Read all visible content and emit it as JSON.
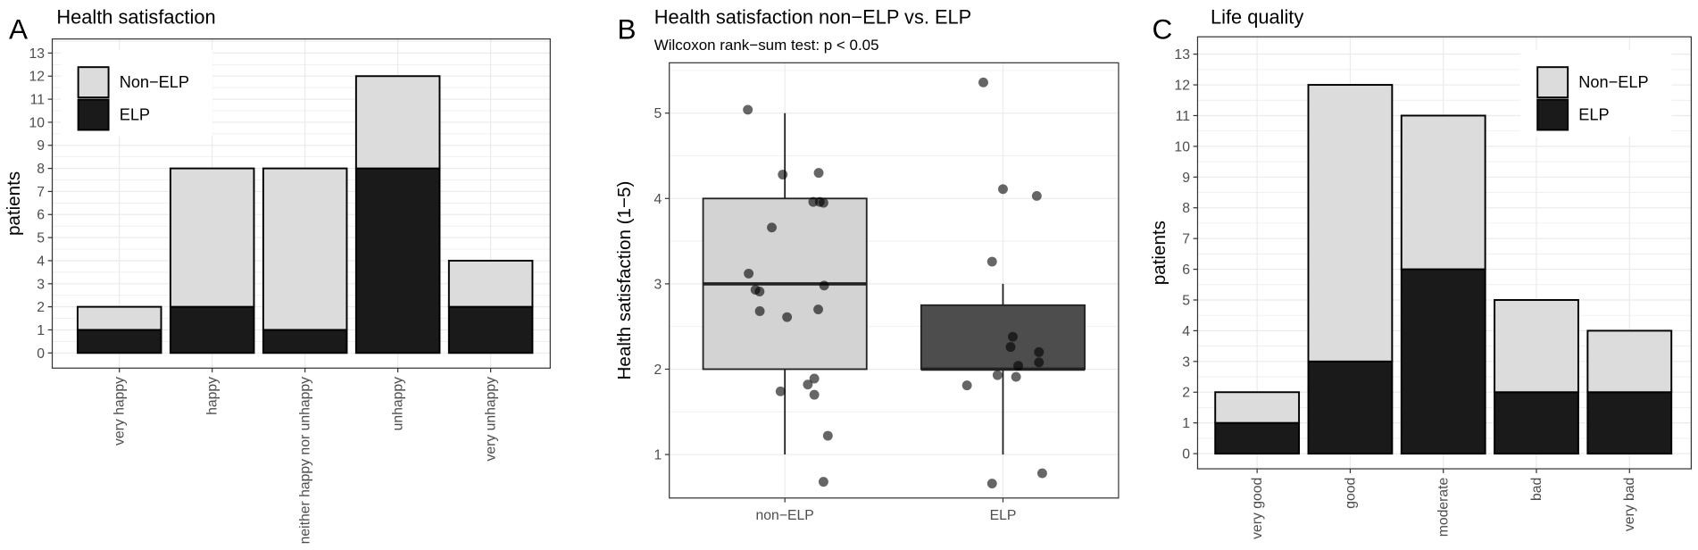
{
  "chart_data": [
    {
      "panel": "A",
      "type": "bar",
      "stacked": true,
      "title": "Health satisfaction",
      "xlabel": "",
      "ylabel": "patients",
      "ylim": [
        0,
        13
      ],
      "yticks": [
        0,
        1,
        2,
        3,
        4,
        5,
        6,
        7,
        8,
        9,
        10,
        11,
        12,
        13
      ],
      "categories": [
        "very happy",
        "happy",
        "neither happy nor unhappy",
        "unhappy",
        "very unhappy"
      ],
      "series": [
        {
          "name": "ELP",
          "color": "#1a1a1a",
          "values": [
            1,
            2,
            1,
            8,
            2
          ]
        },
        {
          "name": "Non−ELP",
          "color": "#dcdcdc",
          "values": [
            1,
            6,
            7,
            4,
            2
          ]
        }
      ],
      "legend": "top-left"
    },
    {
      "panel": "B",
      "type": "box",
      "title": "Health satisfaction non−ELP vs. ELP",
      "subtitle": "Wilcoxon rank−sum test: p < 0.05",
      "xlabel": "",
      "ylabel": "Health satisfaction (1−5)",
      "ylim": [
        0.49,
        5.59
      ],
      "yticks": [
        1,
        2,
        3,
        4,
        5
      ],
      "categories": [
        "non−ELP",
        "ELP"
      ],
      "boxes": [
        {
          "name": "non−ELP",
          "color": "#d3d3d3",
          "min": 1,
          "q1": 2,
          "median": 3,
          "q3": 4,
          "max": 5
        },
        {
          "name": "ELP",
          "color": "#4d4d4d",
          "min": 1,
          "q1": 2,
          "median": 2,
          "q3": 2.75,
          "max": 3
        }
      ],
      "points": [
        {
          "group": 0,
          "jitter": -0.17,
          "y": 5.04
        },
        {
          "group": 0,
          "jitter": -0.01,
          "y": 4.28
        },
        {
          "group": 0,
          "jitter": 0.155,
          "y": 4.3
        },
        {
          "group": 0,
          "jitter": 0.13,
          "y": 3.96
        },
        {
          "group": 0,
          "jitter": 0.16,
          "y": 3.96
        },
        {
          "group": 0,
          "jitter": 0.177,
          "y": 3.95
        },
        {
          "group": 0,
          "jitter": -0.06,
          "y": 3.66
        },
        {
          "group": 0,
          "jitter": -0.166,
          "y": 3.12
        },
        {
          "group": 0,
          "jitter": -0.135,
          "y": 2.93
        },
        {
          "group": 0,
          "jitter": -0.116,
          "y": 2.91
        },
        {
          "group": 0,
          "jitter": 0.18,
          "y": 2.98
        },
        {
          "group": 0,
          "jitter": -0.115,
          "y": 2.68
        },
        {
          "group": 0,
          "jitter": 0.01,
          "y": 2.61
        },
        {
          "group": 0,
          "jitter": 0.153,
          "y": 2.7
        },
        {
          "group": 0,
          "jitter": 0.135,
          "y": 1.89
        },
        {
          "group": 0,
          "jitter": 0.105,
          "y": 1.82
        },
        {
          "group": 0,
          "jitter": -0.02,
          "y": 1.74
        },
        {
          "group": 0,
          "jitter": 0.135,
          "y": 1.7
        },
        {
          "group": 0,
          "jitter": 0.197,
          "y": 1.22
        },
        {
          "group": 0,
          "jitter": 0.177,
          "y": 0.68
        },
        {
          "group": 1,
          "jitter": -0.09,
          "y": 5.36
        },
        {
          "group": 1,
          "jitter": 0.0,
          "y": 4.11
        },
        {
          "group": 1,
          "jitter": 0.155,
          "y": 4.03
        },
        {
          "group": 1,
          "jitter": -0.05,
          "y": 3.26
        },
        {
          "group": 1,
          "jitter": 0.045,
          "y": 2.38
        },
        {
          "group": 1,
          "jitter": 0.035,
          "y": 2.26
        },
        {
          "group": 1,
          "jitter": 0.165,
          "y": 2.2
        },
        {
          "group": 1,
          "jitter": 0.165,
          "y": 2.08
        },
        {
          "group": 1,
          "jitter": 0.07,
          "y": 2.04
        },
        {
          "group": 1,
          "jitter": -0.025,
          "y": 1.93
        },
        {
          "group": 1,
          "jitter": 0.06,
          "y": 1.91
        },
        {
          "group": 1,
          "jitter": -0.165,
          "y": 1.81
        },
        {
          "group": 1,
          "jitter": -0.05,
          "y": 0.66
        },
        {
          "group": 1,
          "jitter": 0.18,
          "y": 0.78
        }
      ]
    },
    {
      "panel": "C",
      "type": "bar",
      "stacked": true,
      "title": "Life quality",
      "xlabel": "",
      "ylabel": "patients",
      "ylim": [
        0,
        13
      ],
      "yticks": [
        0,
        1,
        2,
        3,
        4,
        5,
        6,
        7,
        8,
        9,
        10,
        11,
        12,
        13
      ],
      "categories": [
        "very good",
        "good",
        "moderate",
        "bad",
        "very bad"
      ],
      "series": [
        {
          "name": "ELP",
          "color": "#1a1a1a",
          "values": [
            1,
            3,
            6,
            2,
            2
          ]
        },
        {
          "name": "Non−ELP",
          "color": "#dcdcdc",
          "values": [
            1,
            9,
            5,
            3,
            2
          ]
        }
      ],
      "legend": "top-right"
    }
  ]
}
